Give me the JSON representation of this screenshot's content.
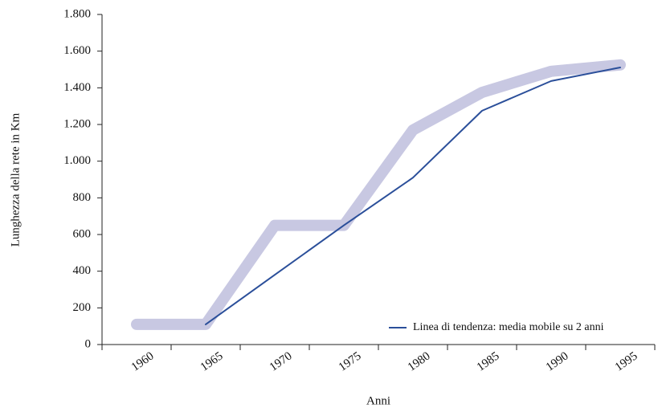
{
  "chart_data": {
    "type": "line",
    "x_label": "Anni",
    "y_label": "Lunghezza della rete in Km",
    "categories": [
      "1960",
      "1965",
      "1970",
      "1975",
      "1980",
      "1985",
      "1990",
      "1995"
    ],
    "series": [
      {
        "color": "#c8c8e2",
        "values": [
          110,
          110,
          650,
          650,
          1170,
          1375,
          1490,
          1525
        ]
      },
      {
        "name": "Linea di tendenza: media mobile su 2 anni",
        "color": "#2b4f9a",
        "values": [
          null,
          110,
          380,
          650,
          910,
          1275,
          1437,
          1511
        ]
      }
    ],
    "ylim": [
      0,
      1800
    ],
    "yticks": [
      0,
      200,
      400,
      600,
      800,
      {
        "value": 1000,
        "label": "1.000"
      },
      {
        "value": 1200,
        "label": "1.200"
      },
      {
        "value": 1400,
        "label": "1.400"
      },
      {
        "value": 1600,
        "label": "1.600"
      },
      {
        "value": 1800,
        "label": "1.800"
      }
    ],
    "legend": "bottom-right"
  }
}
